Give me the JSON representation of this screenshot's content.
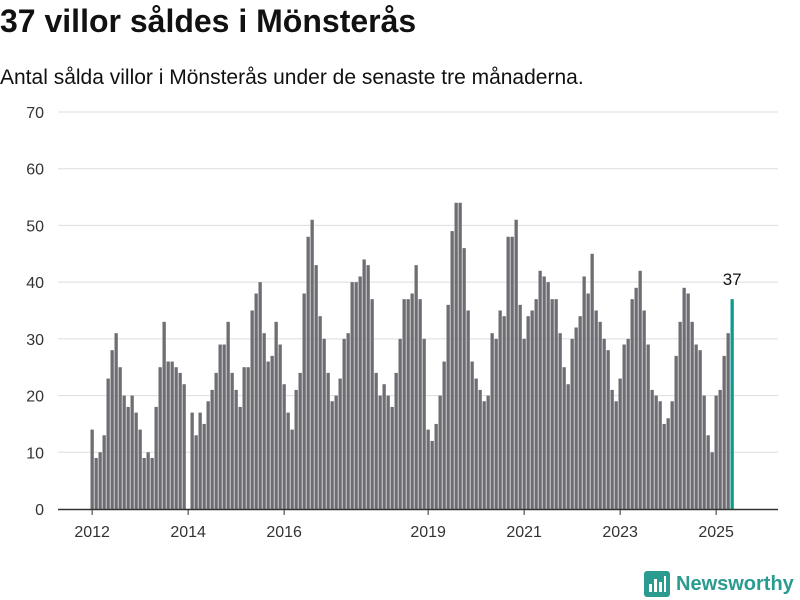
{
  "title": "37 villor såldes i Mönsterås",
  "subtitle": "Antal sålda villor i Mönsterås under de senaste tre månaderna.",
  "brand": {
    "name": "Newsworthy",
    "icon": "newsworthy-logo-icon"
  },
  "colors": {
    "bar": "#6e6d73",
    "highlight": "#12998d",
    "grid": "#dddddd",
    "axis": "#333333",
    "brand": "#2b9b8f"
  },
  "chart_data": {
    "type": "bar",
    "start": "2012-01",
    "x_labels": [
      "2012",
      "2014",
      "2016",
      "2019",
      "2021",
      "2023",
      "2025"
    ],
    "values": [
      14,
      9,
      10,
      13,
      23,
      28,
      31,
      25,
      20,
      18,
      20,
      17,
      14,
      9,
      10,
      9,
      18,
      25,
      33,
      26,
      26,
      25,
      24,
      22,
      0,
      17,
      13,
      17,
      15,
      19,
      21,
      24,
      29,
      29,
      33,
      24,
      21,
      18,
      25,
      25,
      35,
      38,
      40,
      31,
      26,
      27,
      33,
      29,
      22,
      17,
      14,
      21,
      24,
      38,
      48,
      51,
      43,
      34,
      30,
      24,
      19,
      20,
      23,
      30,
      31,
      40,
      40,
      41,
      44,
      43,
      37,
      24,
      20,
      22,
      20,
      18,
      24,
      30,
      37,
      37,
      38,
      43,
      37,
      30,
      14,
      12,
      15,
      20,
      26,
      36,
      49,
      54,
      54,
      46,
      35,
      26,
      23,
      21,
      19,
      20,
      31,
      30,
      35,
      34,
      48,
      48,
      51,
      36,
      30,
      34,
      35,
      37,
      42,
      41,
      40,
      37,
      37,
      31,
      25,
      22,
      30,
      32,
      34,
      41,
      38,
      45,
      35,
      33,
      30,
      28,
      21,
      19,
      23,
      29,
      30,
      37,
      39,
      42,
      35,
      29,
      21,
      20,
      19,
      15,
      16,
      19,
      27,
      33,
      39,
      38,
      33,
      29,
      28,
      20,
      13,
      10,
      20,
      21,
      27,
      31,
      37
    ],
    "highlight_last": true,
    "annotation": "37",
    "ylim": [
      0,
      70
    ],
    "yticks": [
      0,
      10,
      20,
      30,
      40,
      50,
      60,
      70
    ],
    "grid": true,
    "title": "37 villor såldes i Mönsterås",
    "subtitle": "Antal sålda villor i Mönsterås under de senaste tre månaderna.",
    "xlabel": "",
    "ylabel": ""
  }
}
